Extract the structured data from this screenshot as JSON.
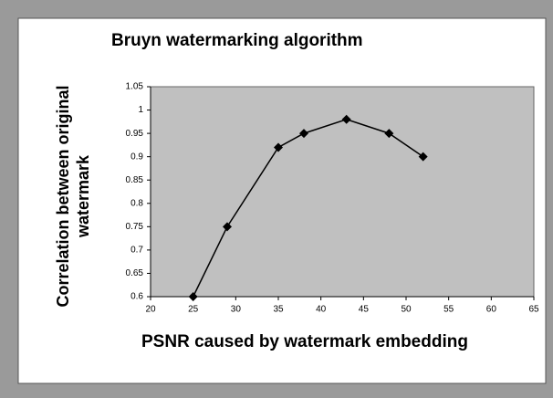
{
  "chart_data": {
    "type": "line",
    "title": "Bruyn watermarking algorithm",
    "xlabel": "PSNR caused by watermark embedding",
    "ylabel": [
      "Correlation between original",
      "watermark"
    ],
    "series": [
      {
        "name": "Bruyn",
        "color": "#000000",
        "x": [
          25,
          29,
          35,
          38,
          43,
          48,
          52
        ],
        "values": [
          0.6,
          0.75,
          0.92,
          0.95,
          0.98,
          0.95,
          0.9
        ]
      }
    ],
    "xlim": [
      20,
      65
    ],
    "xticks": [
      20,
      25,
      30,
      35,
      40,
      45,
      50,
      55,
      60,
      65
    ],
    "ylim": [
      0.6,
      1.05
    ],
    "yticks": [
      0.6,
      0.65,
      0.7,
      0.75,
      0.8,
      0.85,
      0.9,
      0.95,
      1,
      1.05
    ],
    "plot_background": "#c0c0c0"
  }
}
